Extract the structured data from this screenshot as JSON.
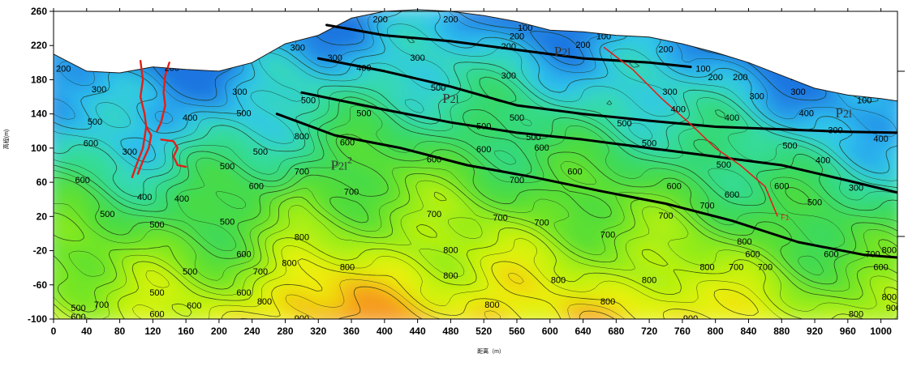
{
  "chart_data": {
    "type": "heatmap",
    "title": "",
    "xlabel": "距离（m）",
    "ylabel": "高程(m)",
    "xlim": [
      0,
      1020
    ],
    "ylim": [
      -100,
      260
    ],
    "x_ticks": [
      0,
      40,
      80,
      120,
      160,
      200,
      240,
      280,
      320,
      360,
      400,
      440,
      480,
      520,
      560,
      600,
      640,
      680,
      720,
      760,
      800,
      840,
      880,
      920,
      960,
      1000
    ],
    "y_ticks": [
      -100,
      -60,
      -20,
      20,
      60,
      100,
      140,
      180,
      220,
      260
    ],
    "surface_profile": [
      [
        0,
        210
      ],
      [
        40,
        190
      ],
      [
        80,
        188
      ],
      [
        120,
        195
      ],
      [
        160,
        192
      ],
      [
        200,
        190
      ],
      [
        240,
        200
      ],
      [
        280,
        222
      ],
      [
        320,
        232
      ],
      [
        360,
        252
      ],
      [
        400,
        260
      ],
      [
        440,
        262
      ],
      [
        480,
        260
      ],
      [
        520,
        255
      ],
      [
        560,
        248
      ],
      [
        600,
        238
      ],
      [
        640,
        236
      ],
      [
        680,
        232
      ],
      [
        720,
        230
      ],
      [
        760,
        222
      ],
      [
        800,
        212
      ],
      [
        840,
        200
      ],
      [
        880,
        185
      ],
      [
        920,
        170
      ],
      [
        960,
        162
      ],
      [
        1000,
        158
      ],
      [
        1020,
        155
      ]
    ],
    "color_scale": [
      {
        "value": 100,
        "color": "#1f74e0"
      },
      {
        "value": 200,
        "color": "#2fc4f2"
      },
      {
        "value": 300,
        "color": "#36dca8"
      },
      {
        "value": 400,
        "color": "#35d86a"
      },
      {
        "value": 500,
        "color": "#4edc3a"
      },
      {
        "value": 600,
        "color": "#7ee81e"
      },
      {
        "value": 700,
        "color": "#bdf20e"
      },
      {
        "value": 800,
        "color": "#eef20a"
      },
      {
        "value": 900,
        "color": "#f59a1a"
      }
    ],
    "contour_labels": [
      {
        "x": 12,
        "y": 192,
        "text": "200"
      },
      {
        "x": 55,
        "y": 168,
        "text": "300"
      },
      {
        "x": 50,
        "y": 130,
        "text": "500"
      },
      {
        "x": 45,
        "y": 105,
        "text": "600"
      },
      {
        "x": 35,
        "y": 62,
        "text": "600"
      },
      {
        "x": 65,
        "y": 22,
        "text": "500"
      },
      {
        "x": 30,
        "y": -88,
        "text": "500"
      },
      {
        "x": 30,
        "y": -98,
        "text": "600"
      },
      {
        "x": 58,
        "y": -84,
        "text": "700"
      },
      {
        "x": 143,
        "y": 193,
        "text": "200"
      },
      {
        "x": 92,
        "y": 95,
        "text": "300"
      },
      {
        "x": 110,
        "y": 42,
        "text": "400"
      },
      {
        "x": 125,
        "y": 10,
        "text": "500"
      },
      {
        "x": 155,
        "y": 40,
        "text": "400"
      },
      {
        "x": 165,
        "y": 135,
        "text": "400"
      },
      {
        "x": 225,
        "y": 165,
        "text": "300"
      },
      {
        "x": 230,
        "y": 140,
        "text": "500"
      },
      {
        "x": 210,
        "y": 78,
        "text": "500"
      },
      {
        "x": 210,
        "y": 13,
        "text": "500"
      },
      {
        "x": 230,
        "y": -70,
        "text": "600"
      },
      {
        "x": 165,
        "y": -45,
        "text": "500"
      },
      {
        "x": 125,
        "y": -70,
        "text": "500"
      },
      {
        "x": 125,
        "y": -95,
        "text": "600"
      },
      {
        "x": 170,
        "y": -85,
        "text": "600"
      },
      {
        "x": 230,
        "y": -25,
        "text": "600"
      },
      {
        "x": 245,
        "y": 55,
        "text": "600"
      },
      {
        "x": 250,
        "y": 95,
        "text": "500"
      },
      {
        "x": 250,
        "y": -45,
        "text": "700"
      },
      {
        "x": 255,
        "y": -80,
        "text": "800"
      },
      {
        "x": 295,
        "y": 217,
        "text": "300"
      },
      {
        "x": 300,
        "y": 72,
        "text": "700"
      },
      {
        "x": 300,
        "y": -5,
        "text": "800"
      },
      {
        "x": 285,
        "y": -35,
        "text": "800"
      },
      {
        "x": 300,
        "y": -100,
        "text": "900"
      },
      {
        "x": 355,
        "y": -40,
        "text": "800"
      },
      {
        "x": 300,
        "y": 113,
        "text": "800"
      },
      {
        "x": 308,
        "y": 155,
        "text": "500"
      },
      {
        "x": 340,
        "y": 205,
        "text": "300"
      },
      {
        "x": 375,
        "y": 193,
        "text": "400"
      },
      {
        "x": 375,
        "y": 140,
        "text": "500"
      },
      {
        "x": 355,
        "y": 106,
        "text": "600"
      },
      {
        "x": 395,
        "y": 250,
        "text": "200"
      },
      {
        "x": 405,
        "y": 264,
        "text": "100"
      },
      {
        "x": 440,
        "y": 205,
        "text": "300"
      },
      {
        "x": 460,
        "y": 86,
        "text": "600"
      },
      {
        "x": 460,
        "y": 22,
        "text": "700"
      },
      {
        "x": 360,
        "y": 48,
        "text": "700"
      },
      {
        "x": 480,
        "y": -50,
        "text": "800"
      },
      {
        "x": 480,
        "y": -20,
        "text": "800"
      },
      {
        "x": 465,
        "y": 170,
        "text": "500"
      },
      {
        "x": 480,
        "y": 250,
        "text": "200"
      },
      {
        "x": 520,
        "y": 125,
        "text": "500"
      },
      {
        "x": 520,
        "y": 98,
        "text": "600"
      },
      {
        "x": 540,
        "y": 18,
        "text": "700"
      },
      {
        "x": 530,
        "y": -84,
        "text": "800"
      },
      {
        "x": 550,
        "y": 218,
        "text": "200"
      },
      {
        "x": 550,
        "y": 184,
        "text": "300"
      },
      {
        "x": 560,
        "y": 135,
        "text": "500"
      },
      {
        "x": 580,
        "y": 112,
        "text": "500"
      },
      {
        "x": 590,
        "y": 100,
        "text": "600"
      },
      {
        "x": 560,
        "y": 62,
        "text": "700"
      },
      {
        "x": 590,
        "y": 12,
        "text": "700"
      },
      {
        "x": 610,
        "y": -55,
        "text": "800"
      },
      {
        "x": 570,
        "y": 240,
        "text": "100"
      },
      {
        "x": 560,
        "y": 230,
        "text": "200"
      },
      {
        "x": 640,
        "y": 220,
        "text": "200"
      },
      {
        "x": 665,
        "y": 230,
        "text": "100"
      },
      {
        "x": 630,
        "y": 72,
        "text": "600"
      },
      {
        "x": 670,
        "y": -2,
        "text": "700"
      },
      {
        "x": 670,
        "y": -80,
        "text": "800"
      },
      {
        "x": 690,
        "y": 128,
        "text": "500"
      },
      {
        "x": 720,
        "y": 105,
        "text": "500"
      },
      {
        "x": 740,
        "y": 215,
        "text": "200"
      },
      {
        "x": 745,
        "y": 165,
        "text": "300"
      },
      {
        "x": 755,
        "y": 145,
        "text": "400"
      },
      {
        "x": 750,
        "y": 55,
        "text": "600"
      },
      {
        "x": 740,
        "y": 20,
        "text": "700"
      },
      {
        "x": 720,
        "y": -55,
        "text": "800"
      },
      {
        "x": 770,
        "y": -100,
        "text": "900"
      },
      {
        "x": 785,
        "y": 192,
        "text": "100"
      },
      {
        "x": 800,
        "y": 182,
        "text": "200"
      },
      {
        "x": 820,
        "y": 135,
        "text": "400"
      },
      {
        "x": 810,
        "y": 80,
        "text": "500"
      },
      {
        "x": 820,
        "y": 45,
        "text": "600"
      },
      {
        "x": 790,
        "y": 32,
        "text": "700"
      },
      {
        "x": 790,
        "y": -40,
        "text": "800"
      },
      {
        "x": 830,
        "y": 182,
        "text": "200"
      },
      {
        "x": 850,
        "y": 160,
        "text": "300"
      },
      {
        "x": 835,
        "y": -10,
        "text": "800"
      },
      {
        "x": 825,
        "y": -40,
        "text": "700"
      },
      {
        "x": 845,
        "y": -25,
        "text": "600"
      },
      {
        "x": 890,
        "y": 102,
        "text": "500"
      },
      {
        "x": 880,
        "y": 55,
        "text": "600"
      },
      {
        "x": 860,
        "y": -40,
        "text": "700"
      },
      {
        "x": 870,
        "y": 200,
        "text": "100"
      },
      {
        "x": 900,
        "y": 182,
        "text": "200"
      },
      {
        "x": 900,
        "y": 165,
        "text": "300"
      },
      {
        "x": 910,
        "y": 140,
        "text": "400"
      },
      {
        "x": 920,
        "y": 36,
        "text": "500"
      },
      {
        "x": 940,
        "y": -25,
        "text": "600"
      },
      {
        "x": 945,
        "y": 120,
        "text": "300"
      },
      {
        "x": 930,
        "y": 85,
        "text": "400"
      },
      {
        "x": 970,
        "y": 53,
        "text": "300"
      },
      {
        "x": 970,
        "y": -95,
        "text": "800"
      },
      {
        "x": 980,
        "y": 155,
        "text": "100"
      },
      {
        "x": 1000,
        "y": -40,
        "text": "600"
      },
      {
        "x": 990,
        "y": -25,
        "text": "700"
      },
      {
        "x": 1010,
        "y": -20,
        "text": "800"
      },
      {
        "x": 1010,
        "y": -75,
        "text": "800"
      },
      {
        "x": 1015,
        "y": -88,
        "text": "900"
      },
      {
        "x": 1000,
        "y": 110,
        "text": "400"
      },
      {
        "x": 960,
        "y": 182,
        "text": "200"
      }
    ],
    "stratigraphic_boundaries": [
      {
        "name": "upper",
        "points": [
          [
            330,
            244
          ],
          [
            400,
            232
          ],
          [
            480,
            225
          ],
          [
            560,
            215
          ],
          [
            640,
            205
          ],
          [
            720,
            200
          ],
          [
            770,
            195
          ]
        ]
      },
      {
        "name": "middle",
        "points": [
          [
            320,
            205
          ],
          [
            400,
            190
          ],
          [
            480,
            172
          ],
          [
            560,
            150
          ],
          [
            640,
            140
          ],
          [
            720,
            132
          ],
          [
            800,
            125
          ],
          [
            880,
            122
          ],
          [
            960,
            119
          ],
          [
            1020,
            118
          ]
        ]
      },
      {
        "name": "lower",
        "points": [
          [
            300,
            165
          ],
          [
            400,
            145
          ],
          [
            480,
            130
          ],
          [
            560,
            118
          ],
          [
            640,
            110
          ],
          [
            720,
            100
          ],
          [
            800,
            90
          ],
          [
            880,
            80
          ],
          [
            960,
            62
          ],
          [
            1020,
            48
          ]
        ]
      },
      {
        "name": "bottom",
        "points": [
          [
            270,
            140
          ],
          [
            340,
            115
          ],
          [
            420,
            100
          ],
          [
            500,
            80
          ],
          [
            580,
            66
          ],
          [
            660,
            50
          ],
          [
            740,
            35
          ],
          [
            820,
            15
          ],
          [
            900,
            -10
          ],
          [
            980,
            -25
          ],
          [
            1020,
            -28
          ]
        ]
      }
    ],
    "fault": {
      "label": "F1",
      "points": [
        [
          665,
          218
        ],
        [
          700,
          192
        ],
        [
          735,
          158
        ],
        [
          770,
          128
        ],
        [
          800,
          100
        ],
        [
          830,
          80
        ],
        [
          860,
          55
        ],
        [
          875,
          20
        ]
      ]
    },
    "anomaly_curves": [
      [
        [
          105,
          202
        ],
        [
          108,
          180
        ],
        [
          105,
          160
        ],
        [
          110,
          140
        ],
        [
          112,
          125
        ],
        [
          118,
          115
        ],
        [
          115,
          100
        ],
        [
          108,
          85
        ],
        [
          102,
          70
        ]
      ],
      [
        [
          140,
          200
        ],
        [
          135,
          185
        ],
        [
          133,
          165
        ],
        [
          135,
          150
        ],
        [
          130,
          130
        ],
        [
          125,
          120
        ]
      ],
      [
        [
          95,
          66
        ],
        [
          100,
          80
        ],
        [
          108,
          100
        ],
        [
          112,
          125
        ]
      ],
      [
        [
          130,
          110
        ],
        [
          145,
          108
        ],
        [
          150,
          100
        ],
        [
          145,
          90
        ],
        [
          150,
          80
        ],
        [
          160,
          78
        ]
      ]
    ],
    "unit_labels": [
      {
        "x": 605,
        "y": 208,
        "base": "P",
        "sup": "",
        "sub": "2l"
      },
      {
        "x": 470,
        "y": 153,
        "base": "P",
        "sup": "",
        "sub": "2l"
      },
      {
        "x": 335,
        "y": 75,
        "base": "P",
        "sup": "2",
        "sub": "2l"
      },
      {
        "x": 945,
        "y": 136,
        "base": "P",
        "sup": "",
        "sub": "2l"
      }
    ]
  }
}
